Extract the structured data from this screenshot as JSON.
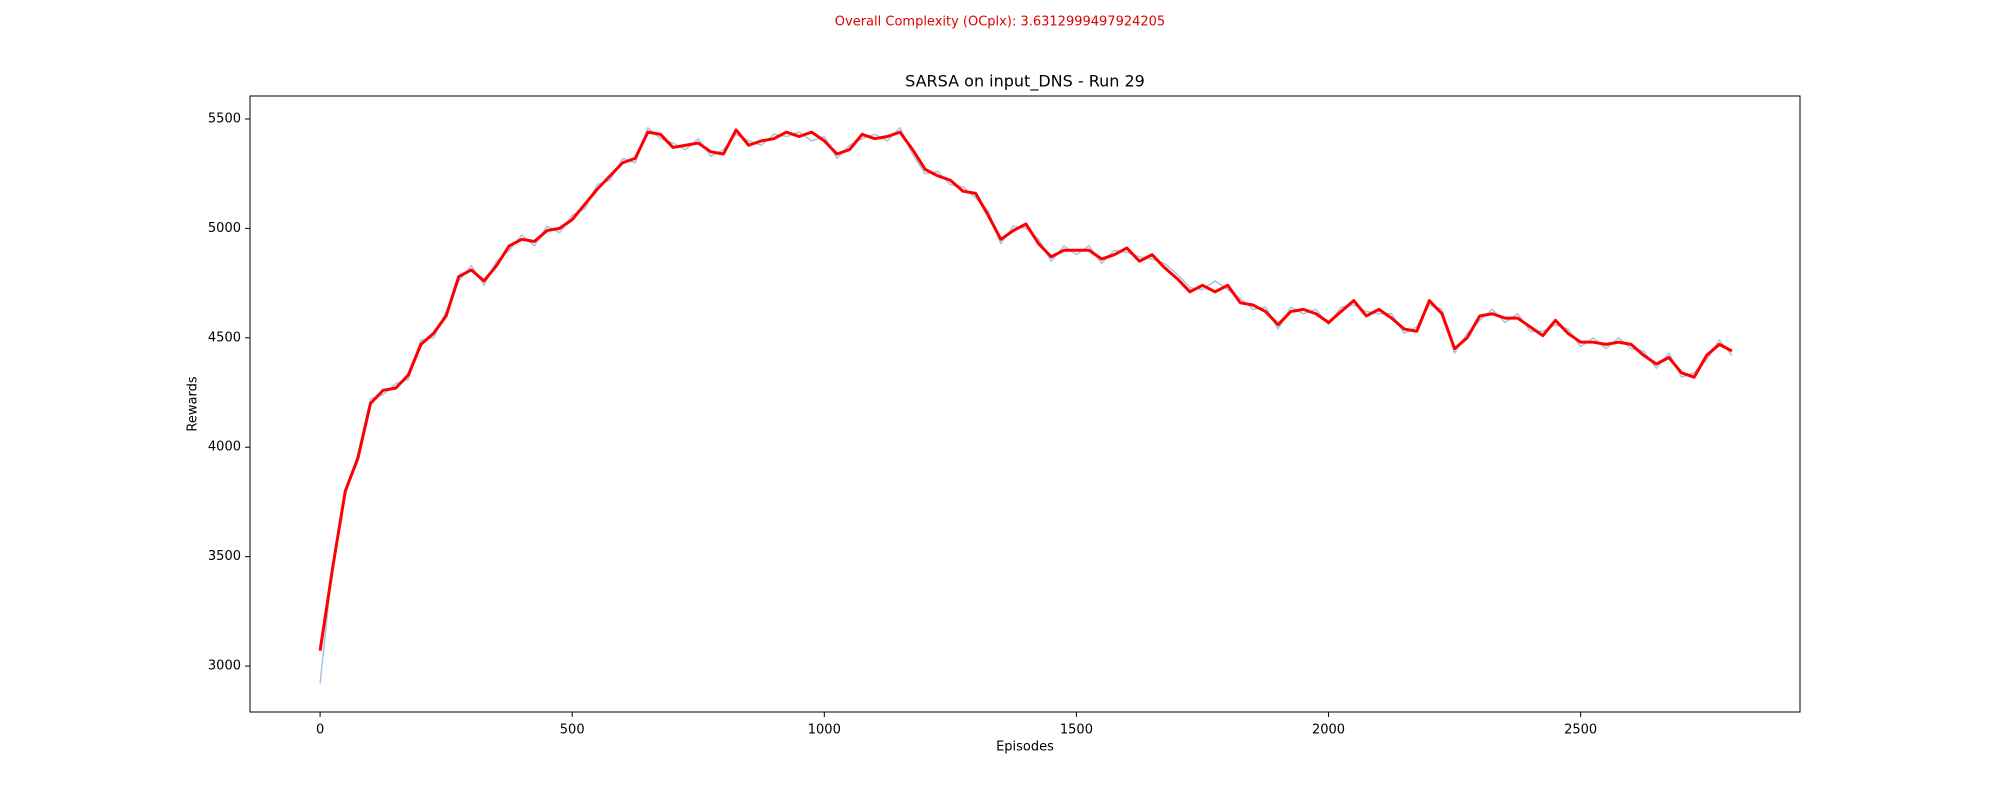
{
  "chart_data": {
    "type": "line",
    "suptitle": "Overall Complexity (OCplx): 3.6312999497924205",
    "title": "SARSA on input_DNS - Run 29",
    "xlabel": "Episodes",
    "ylabel": "Rewards",
    "xlim": [
      -139,
      2935
    ],
    "ylim": [
      2790,
      5605
    ],
    "xticks": [
      0,
      500,
      1000,
      1500,
      2000,
      2500
    ],
    "yticks": [
      3000,
      3500,
      4000,
      4500,
      5000,
      5500
    ],
    "x": [
      0,
      25,
      50,
      75,
      100,
      125,
      150,
      175,
      200,
      225,
      250,
      275,
      300,
      325,
      350,
      375,
      400,
      425,
      450,
      475,
      500,
      525,
      550,
      575,
      600,
      625,
      650,
      675,
      700,
      725,
      750,
      775,
      800,
      825,
      850,
      875,
      900,
      925,
      950,
      975,
      1000,
      1025,
      1050,
      1075,
      1100,
      1125,
      1150,
      1175,
      1200,
      1225,
      1250,
      1275,
      1300,
      1325,
      1350,
      1375,
      1400,
      1425,
      1450,
      1475,
      1500,
      1525,
      1550,
      1575,
      1600,
      1625,
      1650,
      1675,
      1700,
      1725,
      1750,
      1775,
      1800,
      1825,
      1850,
      1875,
      1900,
      1925,
      1950,
      1975,
      2000,
      2025,
      2050,
      2075,
      2100,
      2125,
      2150,
      2175,
      2200,
      2225,
      2250,
      2275,
      2300,
      2325,
      2350,
      2375,
      2400,
      2425,
      2450,
      2475,
      2500,
      2525,
      2550,
      2575,
      2600,
      2625,
      2650,
      2675,
      2700,
      2725,
      2750,
      2775,
      2800
    ],
    "series": [
      {
        "color": "#a8c4e0",
        "values": [
          2920,
          3470,
          3780,
          3970,
          4220,
          4240,
          4290,
          4310,
          4490,
          4500,
          4620,
          4760,
          4830,
          4740,
          4850,
          4900,
          4970,
          4920,
          5010,
          4980,
          5060,
          5090,
          5200,
          5220,
          5320,
          5300,
          5460,
          5410,
          5390,
          5360,
          5410,
          5330,
          5360,
          5430,
          5400,
          5380,
          5430,
          5420,
          5440,
          5400,
          5420,
          5320,
          5380,
          5410,
          5430,
          5400,
          5460,
          5340,
          5250,
          5260,
          5200,
          5190,
          5140,
          5080,
          4930,
          5010,
          5000,
          4950,
          4850,
          4920,
          4880,
          4920,
          4840,
          4900,
          4890,
          4870,
          4860,
          4840,
          4790,
          4730,
          4720,
          4760,
          4720,
          4680,
          4630,
          4640,
          4540,
          4640,
          4610,
          4630,
          4560,
          4640,
          4650,
          4620,
          4610,
          4610,
          4520,
          4550,
          4650,
          4630,
          4430,
          4520,
          4580,
          4630,
          4570,
          4610,
          4530,
          4530,
          4560,
          4540,
          4460,
          4500,
          4450,
          4500,
          4450,
          4440,
          4360,
          4430,
          4320,
          4340,
          4400,
          4490,
          4420
        ]
      },
      {
        "color": "#ff0000",
        "values": [
          3070,
          3450,
          3800,
          3950,
          4200,
          4260,
          4270,
          4330,
          4470,
          4520,
          4600,
          4780,
          4810,
          4760,
          4830,
          4920,
          4950,
          4940,
          4990,
          5000,
          5040,
          5110,
          5180,
          5240,
          5300,
          5320,
          5440,
          5430,
          5370,
          5380,
          5390,
          5350,
          5340,
          5450,
          5380,
          5400,
          5410,
          5440,
          5420,
          5440,
          5400,
          5340,
          5360,
          5430,
          5410,
          5420,
          5440,
          5360,
          5270,
          5240,
          5220,
          5170,
          5160,
          5060,
          4950,
          4990,
          5020,
          4930,
          4870,
          4900,
          4900,
          4900,
          4860,
          4880,
          4910,
          4850,
          4880,
          4820,
          4770,
          4710,
          4740,
          4710,
          4740,
          4660,
          4650,
          4620,
          4560,
          4620,
          4630,
          4610,
          4570,
          4620,
          4670,
          4600,
          4630,
          4590,
          4540,
          4530,
          4670,
          4610,
          4450,
          4500,
          4600,
          4610,
          4590,
          4590,
          4550,
          4510,
          4580,
          4520,
          4480,
          4480,
          4470,
          4480,
          4470,
          4420,
          4380,
          4410,
          4340,
          4320,
          4420,
          4470,
          4440
        ]
      }
    ]
  }
}
